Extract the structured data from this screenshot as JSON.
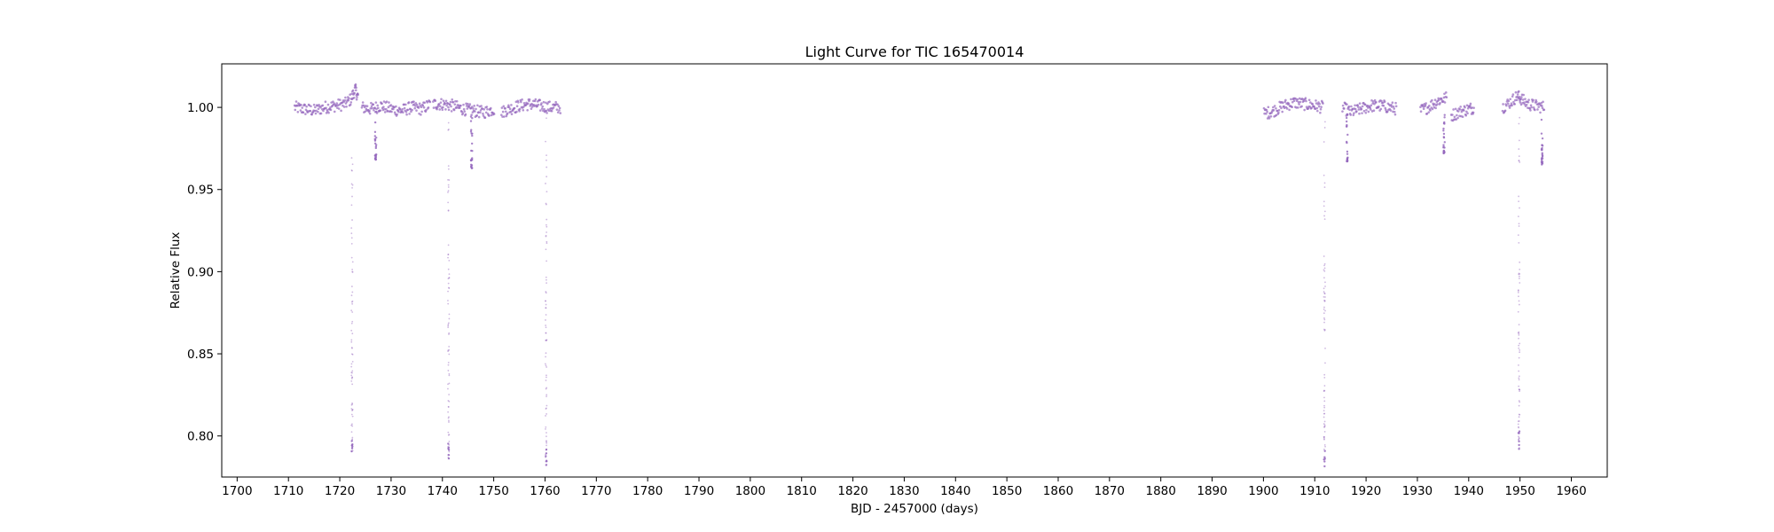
{
  "chart_data": {
    "type": "scatter",
    "title": "Light Curve for TIC 165470014",
    "xlabel": "BJD - 2457000 (days)",
    "ylabel": "Relative Flux",
    "xlim": [
      1697,
      1967
    ],
    "ylim": [
      0.775,
      1.0265
    ],
    "xticks": [
      1700,
      1710,
      1720,
      1730,
      1740,
      1750,
      1760,
      1770,
      1780,
      1790,
      1800,
      1810,
      1820,
      1830,
      1840,
      1850,
      1860,
      1870,
      1880,
      1890,
      1900,
      1910,
      1920,
      1930,
      1940,
      1950,
      1960
    ],
    "xtick_labels": [
      "1700",
      "1710",
      "1720",
      "1730",
      "1740",
      "1750",
      "1760",
      "1770",
      "1780",
      "1790",
      "1800",
      "1810",
      "1820",
      "1830",
      "1840",
      "1850",
      "1860",
      "1870",
      "1880",
      "1890",
      "1900",
      "1910",
      "1920",
      "1930",
      "1940",
      "1950",
      "1960"
    ],
    "yticks": [
      0.8,
      0.85,
      0.9,
      0.95,
      1.0
    ],
    "ytick_labels": [
      "0.80",
      "0.85",
      "0.90",
      "0.95",
      "1.00"
    ],
    "grid": false,
    "legend": "none",
    "color": "#9467bd",
    "series": [
      {
        "segments": [
          {
            "x": [
              1711.2,
              1713,
              1715,
              1717,
              1719,
              1721,
              1722.2,
              1723.0,
              1723.6
            ],
            "y": [
              1.0,
              0.999,
              0.998,
              1.0,
              1.001,
              1.002,
              1.005,
              1.011,
              1.006
            ]
          },
          {
            "x": [
              1724.3,
              1726,
              1728,
              1730,
              1732,
              1734,
              1736,
              1737.7
            ],
            "y": [
              1.0,
              0.999,
              1.001,
              0.999,
              0.998,
              1.0,
              0.999,
              1.002
            ]
          },
          {
            "x": [
              1738.2,
              1740,
              1742,
              1744,
              1746,
              1748,
              1750.2
            ],
            "y": [
              1.002,
              1.002,
              1.001,
              0.999,
              0.998,
              0.997,
              0.999
            ]
          },
          {
            "x": [
              1751.5,
              1753,
              1755,
              1757,
              1759,
              1761,
              1763.1
            ],
            "y": [
              0.997,
              0.999,
              1.001,
              1.002,
              1.001,
              1.0,
              1.0
            ]
          },
          {
            "x": [
              1900.1,
              1902,
              1904,
              1906,
              1908,
              1910,
              1911.7
            ],
            "y": [
              0.996,
              0.998,
              1.001,
              1.003,
              1.002,
              1.001,
              1.0
            ]
          },
          {
            "x": [
              1915.4,
              1917,
              1919,
              1921,
              1923,
              1926.0
            ],
            "y": [
              1.0,
              0.997,
              0.999,
              1.001,
              1.001,
              0.999
            ]
          },
          {
            "x": [
              1930.6,
              1932,
              1934,
              1935.8
            ],
            "y": [
              0.998,
              1.0,
              1.004,
              1.006
            ]
          },
          {
            "x": [
              1936.6,
              1938,
              1940,
              1941.1
            ],
            "y": [
              0.995,
              0.997,
              0.999,
              1.0
            ]
          },
          {
            "x": [
              1946.6,
              1948,
              1949.5,
              1950.3,
              1951.5,
              1953,
              1954.8
            ],
            "y": [
              1.0,
              1.003,
              1.007,
              1.005,
              1.002,
              1.001,
              1.0
            ]
          }
        ],
        "dips": [
          {
            "x": 1722.4,
            "min": 0.787
          },
          {
            "x": 1727.0,
            "min": 0.968
          },
          {
            "x": 1741.2,
            "min": 0.783
          },
          {
            "x": 1745.7,
            "min": 0.963
          },
          {
            "x": 1760.2,
            "min": 0.782
          },
          {
            "x": 1911.9,
            "min": 0.781
          },
          {
            "x": 1916.3,
            "min": 0.967
          },
          {
            "x": 1935.2,
            "min": 0.972
          },
          {
            "x": 1949.8,
            "min": 0.791
          },
          {
            "x": 1954.3,
            "min": 0.965
          }
        ]
      }
    ]
  }
}
